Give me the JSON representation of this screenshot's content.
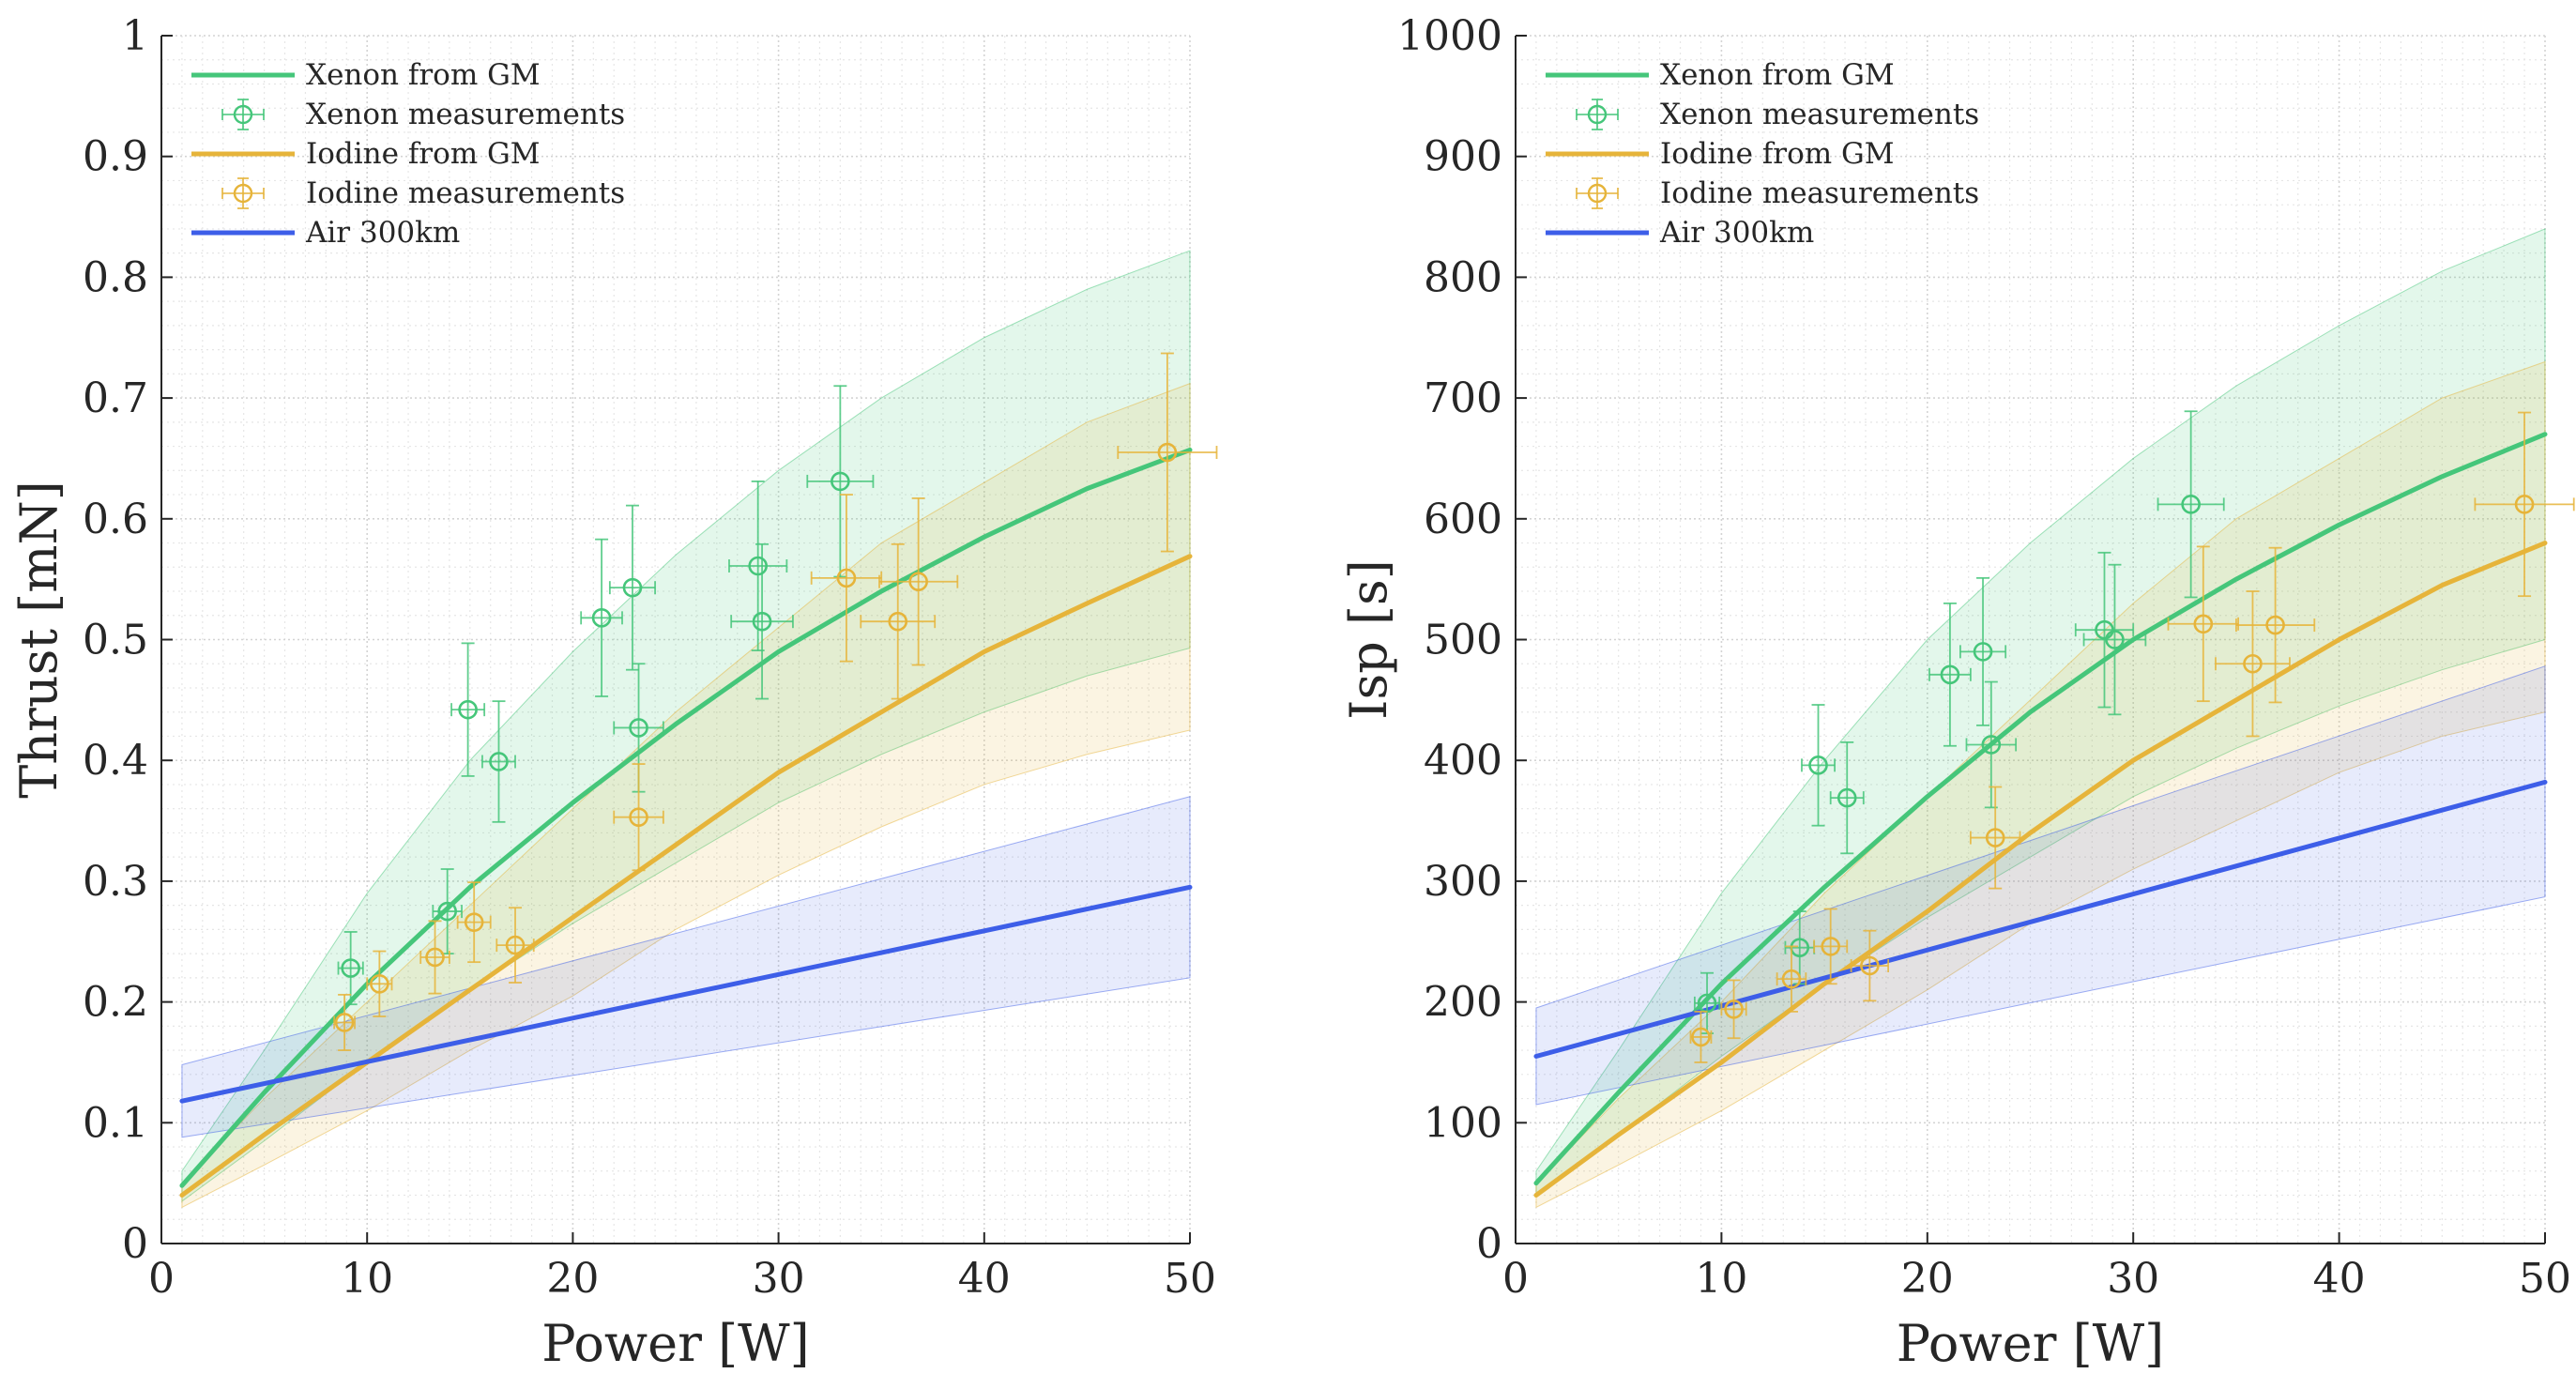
{
  "chart_data": [
    {
      "type": "line",
      "xlabel": "Power [W]",
      "ylabel": "Thrust [mN]",
      "xlim": [
        0,
        50
      ],
      "ylim": [
        0,
        1
      ],
      "xticks": [
        "0",
        "10",
        "20",
        "30",
        "40",
        "50"
      ],
      "yticks": [
        "0",
        "0.1",
        "0.2",
        "0.3",
        "0.4",
        "0.5",
        "0.6",
        "0.7",
        "0.8",
        "0.9",
        "1"
      ],
      "grid": "on (major and minor, dotted)",
      "legend_position": "top-left",
      "colors": {
        "xenon": "#45c67a",
        "iodine": "#e6b43a",
        "air": "#3d5ee8"
      },
      "legend": [
        "Xenon from GM",
        "Xenon measurements",
        "Iodine from GM",
        "Iodine measurements",
        "Air 300km"
      ],
      "series": [
        {
          "name": "Xenon from GM",
          "kind": "line_with_band",
          "x": [
            1,
            5,
            10,
            15,
            20,
            25,
            30,
            35,
            40,
            45,
            50
          ],
          "y": [
            0.048,
            0.125,
            0.215,
            0.295,
            0.365,
            0.43,
            0.49,
            0.54,
            0.585,
            0.625,
            0.657
          ],
          "lower": [
            0.035,
            0.085,
            0.15,
            0.21,
            0.265,
            0.315,
            0.365,
            0.405,
            0.44,
            0.47,
            0.493
          ],
          "upper": [
            0.06,
            0.16,
            0.29,
            0.4,
            0.49,
            0.57,
            0.64,
            0.7,
            0.75,
            0.79,
            0.822
          ]
        },
        {
          "name": "Xenon measurements",
          "kind": "errorbar",
          "points": [
            {
              "x": 9.2,
              "y": 0.228,
              "xerr": 0.6,
              "yerr": 0.03
            },
            {
              "x": 13.9,
              "y": 0.275,
              "xerr": 0.7,
              "yerr": 0.035
            },
            {
              "x": 14.9,
              "y": 0.442,
              "xerr": 0.8,
              "yerr": 0.055
            },
            {
              "x": 16.4,
              "y": 0.399,
              "xerr": 0.8,
              "yerr": 0.05
            },
            {
              "x": 21.4,
              "y": 0.518,
              "xerr": 1.0,
              "yerr": 0.065
            },
            {
              "x": 22.9,
              "y": 0.543,
              "xerr": 1.1,
              "yerr": 0.068
            },
            {
              "x": 23.2,
              "y": 0.427,
              "xerr": 1.2,
              "yerr": 0.053
            },
            {
              "x": 29.0,
              "y": 0.561,
              "xerr": 1.4,
              "yerr": 0.07
            },
            {
              "x": 29.2,
              "y": 0.515,
              "xerr": 1.5,
              "yerr": 0.064
            },
            {
              "x": 33.0,
              "y": 0.631,
              "xerr": 1.6,
              "yerr": 0.079
            }
          ]
        },
        {
          "name": "Iodine from GM",
          "kind": "line_with_band",
          "x": [
            1,
            5,
            10,
            15,
            20,
            25,
            30,
            35,
            40,
            45,
            50
          ],
          "y": [
            0.04,
            0.09,
            0.15,
            0.21,
            0.27,
            0.33,
            0.39,
            0.44,
            0.49,
            0.53,
            0.569
          ],
          "lower": [
            0.03,
            0.065,
            0.11,
            0.16,
            0.205,
            0.26,
            0.305,
            0.345,
            0.38,
            0.405,
            0.425
          ],
          "upper": [
            0.05,
            0.12,
            0.2,
            0.28,
            0.36,
            0.44,
            0.51,
            0.58,
            0.63,
            0.68,
            0.712
          ]
        },
        {
          "name": "Iodine measurements",
          "kind": "errorbar",
          "points": [
            {
              "x": 8.9,
              "y": 0.183,
              "xerr": 0.5,
              "yerr": 0.023
            },
            {
              "x": 10.6,
              "y": 0.215,
              "xerr": 0.6,
              "yerr": 0.027
            },
            {
              "x": 13.3,
              "y": 0.237,
              "xerr": 0.7,
              "yerr": 0.03
            },
            {
              "x": 15.2,
              "y": 0.266,
              "xerr": 0.8,
              "yerr": 0.033
            },
            {
              "x": 17.2,
              "y": 0.247,
              "xerr": 0.9,
              "yerr": 0.031
            },
            {
              "x": 23.2,
              "y": 0.353,
              "xerr": 1.2,
              "yerr": 0.044
            },
            {
              "x": 33.3,
              "y": 0.551,
              "xerr": 1.7,
              "yerr": 0.069
            },
            {
              "x": 35.8,
              "y": 0.515,
              "xerr": 1.8,
              "yerr": 0.064
            },
            {
              "x": 36.8,
              "y": 0.548,
              "xerr": 1.9,
              "yerr": 0.069
            },
            {
              "x": 48.9,
              "y": 0.655,
              "xerr": 2.4,
              "yerr": 0.082
            }
          ]
        },
        {
          "name": "Air 300km",
          "kind": "line_with_band",
          "x": [
            1,
            50
          ],
          "y": [
            0.118,
            0.295
          ],
          "lower": [
            0.088,
            0.22
          ],
          "upper": [
            0.148,
            0.37
          ]
        }
      ]
    },
    {
      "type": "line",
      "xlabel": "Power [W]",
      "ylabel": "Isp [s]",
      "xlim": [
        0,
        50
      ],
      "ylim": [
        0,
        1000
      ],
      "xticks": [
        "0",
        "10",
        "20",
        "30",
        "40",
        "50"
      ],
      "yticks": [
        "0",
        "100",
        "200",
        "300",
        "400",
        "500",
        "600",
        "700",
        "800",
        "900",
        "1000"
      ],
      "grid": "on (major and minor, dotted)",
      "legend_position": "top-left",
      "colors": {
        "xenon": "#45c67a",
        "iodine": "#e6b43a",
        "air": "#3d5ee8"
      },
      "legend": [
        "Xenon from GM",
        "Xenon measurements",
        "Iodine from GM",
        "Iodine measurements",
        "Air 300km"
      ],
      "series": [
        {
          "name": "Xenon from GM",
          "kind": "line_with_band",
          "x": [
            1,
            5,
            10,
            15,
            20,
            25,
            30,
            35,
            40,
            45,
            50
          ],
          "y": [
            50,
            125,
            215,
            295,
            370,
            440,
            500,
            550,
            595,
            635,
            670
          ],
          "lower": [
            40,
            90,
            155,
            215,
            270,
            320,
            370,
            410,
            445,
            475,
            500
          ],
          "upper": [
            60,
            160,
            290,
            400,
            500,
            580,
            650,
            710,
            760,
            805,
            840
          ]
        },
        {
          "name": "Xenon measurements",
          "kind": "errorbar",
          "points": [
            {
              "x": 9.3,
              "y": 199,
              "xerr": 0.6,
              "yerr": 25
            },
            {
              "x": 13.8,
              "y": 245,
              "xerr": 0.7,
              "yerr": 30
            },
            {
              "x": 14.7,
              "y": 396,
              "xerr": 0.8,
              "yerr": 50
            },
            {
              "x": 16.1,
              "y": 369,
              "xerr": 0.8,
              "yerr": 46
            },
            {
              "x": 21.1,
              "y": 471,
              "xerr": 1.0,
              "yerr": 59
            },
            {
              "x": 22.7,
              "y": 490,
              "xerr": 1.1,
              "yerr": 61
            },
            {
              "x": 23.1,
              "y": 413,
              "xerr": 1.2,
              "yerr": 52
            },
            {
              "x": 28.6,
              "y": 508,
              "xerr": 1.4,
              "yerr": 64
            },
            {
              "x": 29.1,
              "y": 500,
              "xerr": 1.5,
              "yerr": 62
            },
            {
              "x": 32.8,
              "y": 612,
              "xerr": 1.6,
              "yerr": 77
            }
          ]
        },
        {
          "name": "Iodine from GM",
          "kind": "line_with_band",
          "x": [
            1,
            5,
            10,
            15,
            20,
            25,
            30,
            35,
            40,
            45,
            50
          ],
          "y": [
            40,
            90,
            150,
            215,
            275,
            340,
            400,
            450,
            500,
            545,
            580
          ],
          "lower": [
            30,
            65,
            110,
            160,
            210,
            265,
            310,
            350,
            390,
            420,
            440
          ],
          "upper": [
            50,
            120,
            200,
            290,
            370,
            450,
            530,
            600,
            650,
            700,
            730
          ]
        },
        {
          "name": "Iodine measurements",
          "kind": "errorbar",
          "points": [
            {
              "x": 9.0,
              "y": 171,
              "xerr": 0.5,
              "yerr": 21
            },
            {
              "x": 10.6,
              "y": 194,
              "xerr": 0.6,
              "yerr": 24
            },
            {
              "x": 13.4,
              "y": 219,
              "xerr": 0.7,
              "yerr": 27
            },
            {
              "x": 15.3,
              "y": 246,
              "xerr": 0.8,
              "yerr": 31
            },
            {
              "x": 17.2,
              "y": 230,
              "xerr": 0.9,
              "yerr": 29
            },
            {
              "x": 23.3,
              "y": 336,
              "xerr": 1.2,
              "yerr": 42
            },
            {
              "x": 33.4,
              "y": 513,
              "xerr": 1.7,
              "yerr": 64
            },
            {
              "x": 35.8,
              "y": 480,
              "xerr": 1.8,
              "yerr": 60
            },
            {
              "x": 36.9,
              "y": 512,
              "xerr": 1.9,
              "yerr": 64
            },
            {
              "x": 49.0,
              "y": 612,
              "xerr": 2.4,
              "yerr": 76
            }
          ]
        },
        {
          "name": "Air 300km",
          "kind": "line_with_band",
          "x": [
            1,
            50
          ],
          "y": [
            155,
            382
          ],
          "lower": [
            115,
            287
          ],
          "upper": [
            195,
            478
          ]
        }
      ]
    }
  ]
}
